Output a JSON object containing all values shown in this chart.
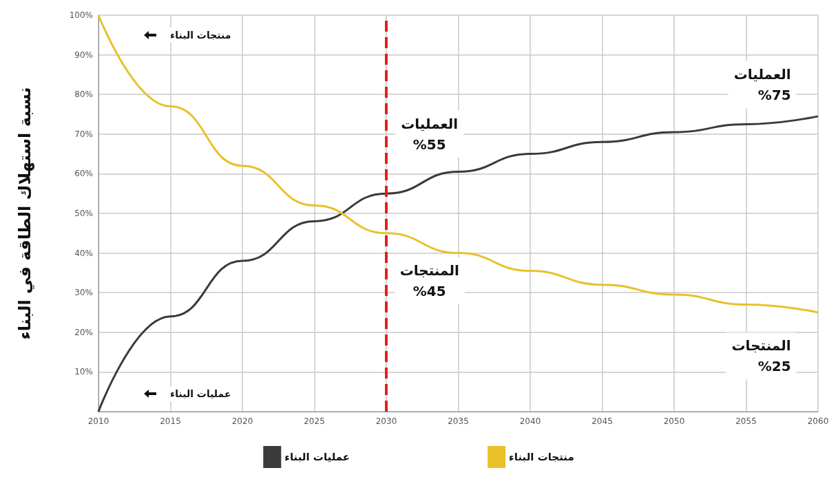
{
  "chart_data": {
    "type": "line",
    "ylabel": "نسبة استهلاك الطاقة في البناء",
    "x": [
      2010,
      2015,
      2020,
      2025,
      2030,
      2035,
      2040,
      2045,
      2050,
      2055,
      2060
    ],
    "series": [
      {
        "name": "عمليات البناء",
        "color": "#3a3a3a",
        "values": [
          0,
          24,
          38,
          48,
          55,
          60.5,
          65,
          68,
          70.5,
          72.5,
          74.5
        ]
      },
      {
        "name": "منتجات البناء",
        "color": "#e8c12a",
        "values": [
          100,
          77,
          62,
          52,
          45,
          40,
          35.5,
          32,
          29.5,
          27,
          25
        ]
      }
    ],
    "xlim": [
      2010,
      2060
    ],
    "xticks": [
      2010,
      2015,
      2020,
      2025,
      2030,
      2035,
      2040,
      2045,
      2050,
      2055,
      2060
    ],
    "ylim": [
      0,
      100
    ],
    "yticks": [
      {
        "value": 0,
        "label": null
      },
      {
        "value": 10,
        "label": "10%"
      },
      {
        "value": 20,
        "label": "20%"
      },
      {
        "value": 30,
        "label": "30%"
      },
      {
        "value": 40,
        "label": "40%"
      },
      {
        "value": 50,
        "label": "50%"
      },
      {
        "value": 60,
        "label": "60%"
      },
      {
        "value": 70,
        "label": "70%"
      },
      {
        "value": 80,
        "label": "80%"
      },
      {
        "value": 90,
        "label": "90%"
      },
      {
        "value": 100,
        "label": "100%"
      }
    ],
    "ref_lines": [
      {
        "axis": "x",
        "value": 2030,
        "color": "#e02020",
        "line_style": "dashed"
      }
    ],
    "annotations": [
      "العمليات\n%55",
      "المنتجات\n%45",
      "العمليات\n%75",
      "المنتجات\n%25",
      "منتجات البناء",
      "عمليات البناء"
    ],
    "grid": true,
    "legend": "bottom",
    "marker": "none",
    "line_style": "solid"
  }
}
